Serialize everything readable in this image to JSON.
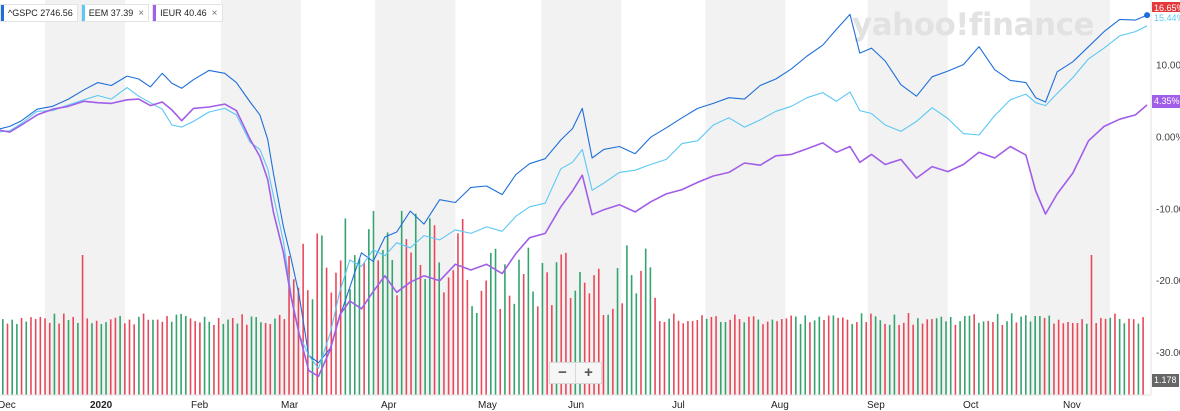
{
  "legend": [
    {
      "symbol": "^GSPC",
      "value": "2746.56",
      "color": "#1e6fd9",
      "closable": false
    },
    {
      "symbol": "EEM",
      "value": "37.39",
      "color": "#5bc8f5",
      "closable": true
    },
    {
      "symbol": "IEUR",
      "value": "40.46",
      "color": "#a15ee8",
      "closable": true
    }
  ],
  "legend_close_glyph": "×",
  "watermark": "yahoo!finance",
  "zoom": {
    "minus": "−",
    "plus": "+"
  },
  "tags": {
    "gspc": {
      "text": "16.65%",
      "bg": "#e5383b",
      "fg": "#ffffff"
    },
    "eem": {
      "text": "15.44%",
      "bg": "#ffffff",
      "fg": "#5bc8f5"
    },
    "ieur": {
      "text": "4.35%",
      "bg": "#a15ee8",
      "fg": "#ffffff"
    },
    "volume": {
      "text": "1.178",
      "bg": "#666666",
      "fg": "#ffffff"
    }
  },
  "colors": {
    "volume_up": "#34a36e",
    "volume_down": "#e8495a",
    "band": "#f2f2f2"
  },
  "chart_data": {
    "type": "line",
    "title": "",
    "xlabel": "",
    "ylabel": "",
    "x_ticks": [
      "Dec",
      "2020",
      "Feb",
      "Mar",
      "Apr",
      "May",
      "Jun",
      "Jul",
      "Aug",
      "Sep",
      "Oct",
      "Nov"
    ],
    "y_ticks": [
      "10.00%",
      "0.00%",
      "-10.00%",
      "-20.00%",
      "-30.00%"
    ],
    "y_tick_values": [
      10,
      0,
      -10,
      -20,
      -30
    ],
    "ylim": [
      -36,
      19
    ],
    "grid": "alternating vertical month bands",
    "legend_position": "top-left",
    "series": [
      {
        "name": "^GSPC",
        "color": "#1e6fd9",
        "values": [
          [
            0,
            1
          ],
          [
            0.3,
            1.4
          ],
          [
            0.6,
            2.2
          ],
          [
            1,
            3.8
          ],
          [
            1.4,
            4.2
          ],
          [
            1.8,
            5.2
          ],
          [
            2.2,
            6.5
          ],
          [
            2.55,
            7.5
          ],
          [
            2.9,
            7.1
          ],
          [
            3.3,
            8.4
          ],
          [
            3.6,
            8.0
          ],
          [
            3.9,
            6.9
          ],
          [
            4.2,
            8.8
          ],
          [
            4.45,
            7.4
          ],
          [
            4.7,
            6.7
          ],
          [
            5.0,
            7.9
          ],
          [
            5.4,
            9.2
          ],
          [
            5.8,
            8.8
          ],
          [
            6.1,
            7.5
          ],
          [
            6.45,
            4.8
          ],
          [
            6.7,
            3.0
          ],
          [
            6.9,
            -0.4
          ],
          [
            7.05,
            -5.2
          ],
          [
            7.3,
            -12.5
          ],
          [
            7.5,
            -17.0
          ],
          [
            7.7,
            -22.0
          ],
          [
            7.95,
            -30.5
          ],
          [
            8.2,
            -31.5
          ],
          [
            8.5,
            -29.5
          ],
          [
            8.75,
            -25.0
          ],
          [
            9.0,
            -21.0
          ],
          [
            9.3,
            -16.2
          ],
          [
            9.6,
            -17.4
          ],
          [
            9.9,
            -14.0
          ],
          [
            10.2,
            -13.3
          ],
          [
            10.55,
            -10.4
          ],
          [
            10.9,
            -12.2
          ],
          [
            11.3,
            -8.8
          ],
          [
            11.7,
            -9.2
          ],
          [
            12.1,
            -7.1
          ],
          [
            12.5,
            -6.9
          ],
          [
            12.9,
            -8.1
          ],
          [
            13.25,
            -5.3
          ],
          [
            13.6,
            -3.8
          ],
          [
            14.0,
            -3.1
          ],
          [
            14.4,
            -0.5
          ],
          [
            14.7,
            1.1
          ],
          [
            14.95,
            3.9
          ],
          [
            15.2,
            -3.0
          ],
          [
            15.5,
            -1.8
          ],
          [
            15.9,
            -1.4
          ],
          [
            16.3,
            -2.4
          ],
          [
            16.7,
            -0.1
          ],
          [
            17.1,
            1.2
          ],
          [
            17.5,
            2.6
          ],
          [
            17.9,
            3.9
          ],
          [
            18.3,
            4.6
          ],
          [
            18.7,
            5.4
          ],
          [
            19.1,
            5.2
          ],
          [
            19.5,
            7.1
          ],
          [
            19.9,
            8.0
          ],
          [
            20.3,
            9.4
          ],
          [
            20.7,
            11.2
          ],
          [
            21.1,
            12.7
          ],
          [
            21.45,
            14.9
          ],
          [
            21.8,
            17.0
          ],
          [
            22.05,
            11.6
          ],
          [
            22.35,
            12.3
          ],
          [
            22.7,
            10.5
          ],
          [
            23.1,
            7.2
          ],
          [
            23.5,
            5.6
          ],
          [
            23.9,
            8.3
          ],
          [
            24.3,
            9.1
          ],
          [
            24.7,
            10.0
          ],
          [
            25.1,
            12.5
          ],
          [
            25.5,
            9.3
          ],
          [
            25.9,
            7.8
          ],
          [
            26.3,
            7.5
          ],
          [
            26.55,
            5.4
          ],
          [
            26.8,
            4.8
          ],
          [
            27.1,
            9.0
          ],
          [
            27.5,
            10.4
          ],
          [
            27.9,
            12.5
          ],
          [
            28.3,
            14.6
          ],
          [
            28.7,
            16.3
          ],
          [
            29.1,
            16.2
          ],
          [
            29.4,
            16.9
          ]
        ]
      },
      {
        "name": "EEM",
        "color": "#5bc8f5",
        "values": [
          [
            0,
            0.6
          ],
          [
            0.3,
            0.8
          ],
          [
            0.6,
            1.8
          ],
          [
            1,
            3.5
          ],
          [
            1.4,
            3.6
          ],
          [
            1.8,
            4.4
          ],
          [
            2.2,
            5.1
          ],
          [
            2.55,
            5.7
          ],
          [
            2.9,
            5.2
          ],
          [
            3.3,
            6.8
          ],
          [
            3.6,
            5.6
          ],
          [
            3.9,
            4.7
          ],
          [
            4.2,
            3.8
          ],
          [
            4.45,
            1.6
          ],
          [
            4.7,
            1.3
          ],
          [
            5.0,
            2.1
          ],
          [
            5.4,
            3.4
          ],
          [
            5.8,
            3.9
          ],
          [
            6.1,
            3.0
          ],
          [
            6.45,
            -0.8
          ],
          [
            6.7,
            -1.8
          ],
          [
            6.9,
            -4.5
          ],
          [
            7.05,
            -8.3
          ],
          [
            7.3,
            -14.5
          ],
          [
            7.5,
            -22.0
          ],
          [
            7.7,
            -27.5
          ],
          [
            7.95,
            -30.5
          ],
          [
            8.2,
            -32.3
          ],
          [
            8.5,
            -27.4
          ],
          [
            8.75,
            -21.5
          ],
          [
            9.0,
            -17.2
          ],
          [
            9.3,
            -18.1
          ],
          [
            9.6,
            -15.8
          ],
          [
            9.9,
            -16.6
          ],
          [
            10.2,
            -14.8
          ],
          [
            10.55,
            -15.5
          ],
          [
            10.9,
            -13.8
          ],
          [
            11.3,
            -14.4
          ],
          [
            11.7,
            -13.0
          ],
          [
            12.1,
            -13.5
          ],
          [
            12.5,
            -12.6
          ],
          [
            12.9,
            -13.2
          ],
          [
            13.25,
            -11.1
          ],
          [
            13.6,
            -9.8
          ],
          [
            14.0,
            -9.3
          ],
          [
            14.4,
            -4.5
          ],
          [
            14.7,
            -3.6
          ],
          [
            14.95,
            -1.8
          ],
          [
            15.2,
            -7.5
          ],
          [
            15.5,
            -6.5
          ],
          [
            15.9,
            -5.0
          ],
          [
            16.3,
            -4.7
          ],
          [
            16.7,
            -3.9
          ],
          [
            17.1,
            -3.2
          ],
          [
            17.5,
            -1.0
          ],
          [
            17.9,
            -0.6
          ],
          [
            18.3,
            1.6
          ],
          [
            18.7,
            2.6
          ],
          [
            19.1,
            1.3
          ],
          [
            19.5,
            2.3
          ],
          [
            19.9,
            3.5
          ],
          [
            20.3,
            4.2
          ],
          [
            20.7,
            5.4
          ],
          [
            21.1,
            6.1
          ],
          [
            21.45,
            4.9
          ],
          [
            21.8,
            6.2
          ],
          [
            22.05,
            3.6
          ],
          [
            22.35,
            3.2
          ],
          [
            22.7,
            1.6
          ],
          [
            23.1,
            0.7
          ],
          [
            23.5,
            2.1
          ],
          [
            23.9,
            4.0
          ],
          [
            24.3,
            2.5
          ],
          [
            24.7,
            0.4
          ],
          [
            25.1,
            0.2
          ],
          [
            25.5,
            2.9
          ],
          [
            25.9,
            5.1
          ],
          [
            26.3,
            5.9
          ],
          [
            26.55,
            4.7
          ],
          [
            26.8,
            4.3
          ],
          [
            27.1,
            6.0
          ],
          [
            27.5,
            8.2
          ],
          [
            27.9,
            10.8
          ],
          [
            28.3,
            12.3
          ],
          [
            28.7,
            14.0
          ],
          [
            29.1,
            14.6
          ],
          [
            29.4,
            15.4
          ]
        ]
      },
      {
        "name": "IEUR",
        "color": "#a15ee8",
        "values": [
          [
            0,
            0.9
          ],
          [
            0.3,
            0.6
          ],
          [
            0.6,
            1.6
          ],
          [
            1,
            3.0
          ],
          [
            1.4,
            3.8
          ],
          [
            1.8,
            4.2
          ],
          [
            2.2,
            4.9
          ],
          [
            2.55,
            4.7
          ],
          [
            2.9,
            4.6
          ],
          [
            3.3,
            5.1
          ],
          [
            3.6,
            5.2
          ],
          [
            3.9,
            4.3
          ],
          [
            4.2,
            4.8
          ],
          [
            4.45,
            3.7
          ],
          [
            4.7,
            2.2
          ],
          [
            5.0,
            3.9
          ],
          [
            5.4,
            4.1
          ],
          [
            5.8,
            4.5
          ],
          [
            6.1,
            3.6
          ],
          [
            6.45,
            -0.4
          ],
          [
            6.7,
            -2.8
          ],
          [
            6.9,
            -6.0
          ],
          [
            7.05,
            -10.6
          ],
          [
            7.3,
            -16.1
          ],
          [
            7.5,
            -22.4
          ],
          [
            7.7,
            -27.4
          ],
          [
            7.95,
            -32.6
          ],
          [
            8.2,
            -33.4
          ],
          [
            8.5,
            -29.7
          ],
          [
            8.75,
            -24.8
          ],
          [
            9.0,
            -22.9
          ],
          [
            9.3,
            -24.0
          ],
          [
            9.6,
            -21.6
          ],
          [
            9.9,
            -19.4
          ],
          [
            10.2,
            -21.7
          ],
          [
            10.55,
            -20.3
          ],
          [
            10.9,
            -19.4
          ],
          [
            11.3,
            -20.1
          ],
          [
            11.7,
            -17.8
          ],
          [
            12.1,
            -18.6
          ],
          [
            12.5,
            -17.8
          ],
          [
            12.9,
            -19.1
          ],
          [
            13.25,
            -16.3
          ],
          [
            13.6,
            -14.1
          ],
          [
            14.0,
            -13.5
          ],
          [
            14.4,
            -9.8
          ],
          [
            14.7,
            -7.6
          ],
          [
            14.95,
            -5.4
          ],
          [
            15.2,
            -10.9
          ],
          [
            15.5,
            -10.2
          ],
          [
            15.9,
            -9.5
          ],
          [
            16.3,
            -10.5
          ],
          [
            16.7,
            -9.1
          ],
          [
            17.1,
            -8.0
          ],
          [
            17.5,
            -7.4
          ],
          [
            17.9,
            -6.4
          ],
          [
            18.3,
            -5.5
          ],
          [
            18.7,
            -5.0
          ],
          [
            19.1,
            -3.7
          ],
          [
            19.5,
            -4.0
          ],
          [
            19.9,
            -2.7
          ],
          [
            20.3,
            -2.5
          ],
          [
            20.7,
            -1.7
          ],
          [
            21.1,
            -0.9
          ],
          [
            21.45,
            -2.2
          ],
          [
            21.8,
            -1.4
          ],
          [
            22.05,
            -3.6
          ],
          [
            22.35,
            -2.5
          ],
          [
            22.7,
            -3.9
          ],
          [
            23.1,
            -3.2
          ],
          [
            23.5,
            -5.8
          ],
          [
            23.9,
            -4.2
          ],
          [
            24.3,
            -4.9
          ],
          [
            24.7,
            -3.9
          ],
          [
            25.1,
            -2.2
          ],
          [
            25.5,
            -3.0
          ],
          [
            25.9,
            -1.4
          ],
          [
            26.3,
            -2.6
          ],
          [
            26.55,
            -7.6
          ],
          [
            26.8,
            -10.8
          ],
          [
            27.1,
            -8.0
          ],
          [
            27.5,
            -5.1
          ],
          [
            27.9,
            -0.6
          ],
          [
            28.3,
            1.4
          ],
          [
            28.7,
            2.4
          ],
          [
            29.1,
            3.0
          ],
          [
            29.4,
            4.4
          ]
        ]
      }
    ],
    "volume": {
      "dominant_pattern": "green_red_alternating",
      "last_value_label": "1.178"
    }
  }
}
